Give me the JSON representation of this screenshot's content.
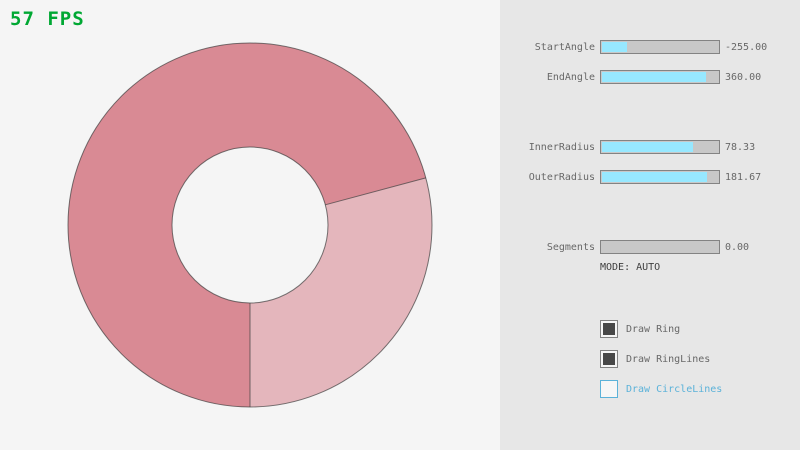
{
  "app": {
    "fps_label": "57 FPS"
  },
  "ring": {
    "dark_color": "#d98a94",
    "light_color": "#e4b6bc",
    "line_color": "#3f3f3f"
  },
  "panel": {
    "sliders": [
      {
        "label": "StartAngle",
        "value": "-255.00",
        "fill": 0.217
      },
      {
        "label": "EndAngle",
        "value": "360.00",
        "fill": 0.9
      },
      {
        "label": "InnerRadius",
        "value": "78.33",
        "fill": 0.783
      },
      {
        "label": "OuterRadius",
        "value": "181.67",
        "fill": 0.908
      },
      {
        "label": "Segments",
        "value": "0.00",
        "fill": 0
      }
    ],
    "mode_text": "MODE: AUTO",
    "checkboxes": [
      {
        "label": "Draw Ring",
        "checked": true
      },
      {
        "label": "Draw RingLines",
        "checked": true
      },
      {
        "label": "Draw CircleLines",
        "checked": false
      }
    ]
  },
  "colors": {
    "screen_bg": "#f5f5f5",
    "panel_bg": "#e7e7e7",
    "fps_green": "#00a833",
    "text": "#686868",
    "mode": "#3f3f3f",
    "border": "#838383",
    "slider_track": "#c8c8c8",
    "slider_fill": "#97e8ff",
    "check": "#484848",
    "focused": "#5bb2d9"
  }
}
